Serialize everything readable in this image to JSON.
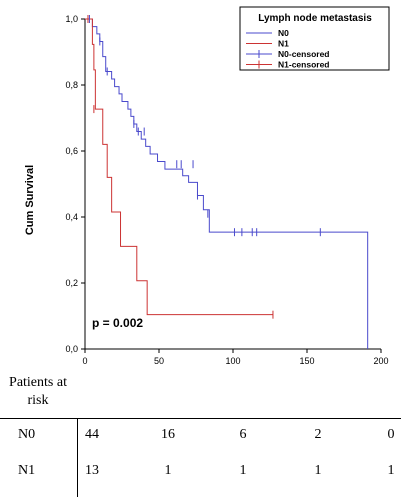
{
  "chart_data": {
    "type": "line",
    "subtype": "kaplan-meier",
    "ylabel": "Cum Survival",
    "xlim": [
      0,
      200
    ],
    "ylim": [
      0.0,
      1.0
    ],
    "x_ticks": [
      "0",
      "50",
      "100",
      "150",
      "200"
    ],
    "y_ticks": [
      "0,0",
      "0,2",
      "0,4",
      "0,6",
      "0,8",
      "1,0"
    ],
    "legend": {
      "title": "Lymph node metastasis",
      "placement": "top-right",
      "entries": [
        "N0",
        "N1",
        "N0-censored",
        "N1-censored"
      ]
    },
    "annotation": "p = 0.002",
    "colors": {
      "N0": "#4a4acc",
      "N1": "#cc3333"
    },
    "series": [
      {
        "name": "N0",
        "steps": [
          [
            0,
            1.0
          ],
          [
            3,
            1.0
          ],
          [
            5,
            0.977
          ],
          [
            8,
            0.955
          ],
          [
            10,
            0.932
          ],
          [
            12,
            0.886
          ],
          [
            14,
            0.841
          ],
          [
            18,
            0.818
          ],
          [
            20,
            0.795
          ],
          [
            23,
            0.773
          ],
          [
            25,
            0.75
          ],
          [
            29,
            0.727
          ],
          [
            31,
            0.705
          ],
          [
            33,
            0.682
          ],
          [
            35,
            0.659
          ],
          [
            38,
            0.636
          ],
          [
            41,
            0.614
          ],
          [
            44,
            0.591
          ],
          [
            46,
            0.591
          ],
          [
            49,
            0.568
          ],
          [
            54,
            0.545
          ],
          [
            57,
            0.545
          ],
          [
            62,
            0.545
          ],
          [
            66,
            0.525
          ],
          [
            70,
            0.505
          ],
          [
            76,
            0.465
          ],
          [
            80,
            0.422
          ],
          [
            84,
            0.354
          ],
          [
            191,
            0.354
          ],
          [
            191,
            0.0
          ]
        ],
        "censored": [
          [
            3,
            1.0
          ],
          [
            10,
            0.932
          ],
          [
            15,
            0.841
          ],
          [
            33,
            0.682
          ],
          [
            36,
            0.659
          ],
          [
            40,
            0.659
          ],
          [
            62,
            0.56
          ],
          [
            65,
            0.56
          ],
          [
            73,
            0.56
          ],
          [
            76,
            0.465
          ],
          [
            83,
            0.41
          ],
          [
            101,
            0.354
          ],
          [
            106,
            0.354
          ],
          [
            113,
            0.354
          ],
          [
            116,
            0.354
          ],
          [
            159,
            0.354
          ]
        ]
      },
      {
        "name": "N1",
        "steps": [
          [
            0,
            1.0
          ],
          [
            4,
            1.0
          ],
          [
            5,
            0.923
          ],
          [
            6,
            0.846
          ],
          [
            7,
            0.727
          ],
          [
            11,
            0.727
          ],
          [
            12,
            0.62
          ],
          [
            15,
            0.52
          ],
          [
            17,
            0.52
          ],
          [
            18,
            0.415
          ],
          [
            23,
            0.415
          ],
          [
            24,
            0.311
          ],
          [
            34,
            0.311
          ],
          [
            35,
            0.207
          ],
          [
            41,
            0.207
          ],
          [
            42,
            0.104
          ],
          [
            127,
            0.104
          ]
        ],
        "censored": [
          [
            2,
            1.0
          ],
          [
            6,
            0.727
          ],
          [
            127,
            0.104
          ]
        ]
      }
    ]
  },
  "risk_table": {
    "header": "Patients at risk",
    "rows": [
      {
        "label": "N0",
        "values": [
          "44",
          "16",
          "6",
          "2",
          "0"
        ]
      },
      {
        "label": "N1",
        "values": [
          "13",
          "1",
          "1",
          "1",
          "1"
        ]
      }
    ]
  }
}
